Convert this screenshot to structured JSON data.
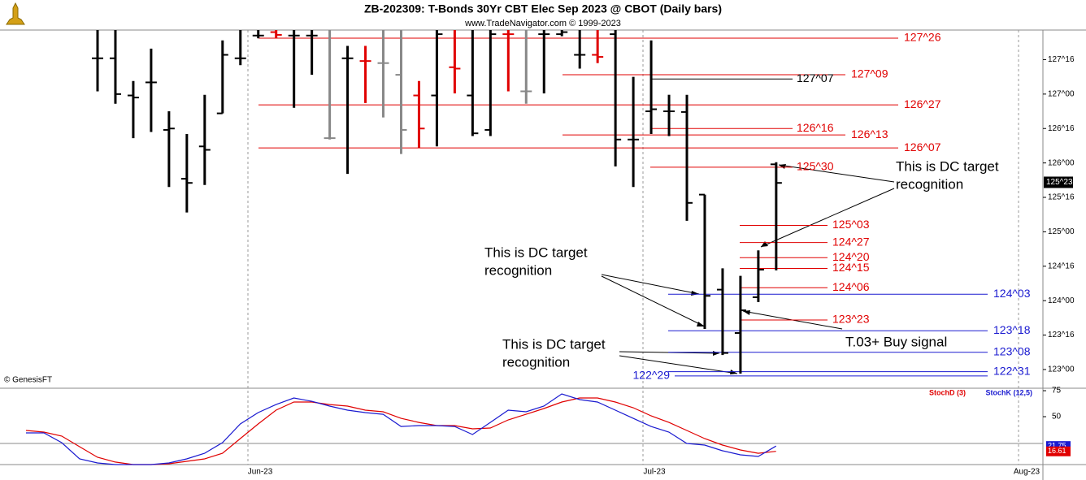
{
  "chart_data": [
    {
      "type": "ohlc",
      "title": "ZB-202309:  T-Bonds 30Yr CBT Elec Sep 2023 @ CBOT  (Daily bars)",
      "subtitle": "www.TradeNavigator.com © 1999-2023",
      "credit": "© GenesisFT",
      "x_axis_labels": [
        "Jun-23",
        "Jul-23",
        "Aug-23"
      ],
      "ylim": [
        122.74,
        127.93
      ],
      "yticks": [
        {
          "value": 123,
          "label": "123^00"
        },
        {
          "value": 123.5,
          "label": "123^16"
        },
        {
          "value": 124,
          "label": "124^00"
        },
        {
          "value": 124.5,
          "label": "124^16"
        },
        {
          "value": 125,
          "label": "125^00"
        },
        {
          "value": 125.5,
          "label": "125^16"
        },
        {
          "value": 126,
          "label": "126^00"
        },
        {
          "value": 126.5,
          "label": "126^16"
        },
        {
          "value": 127,
          "label": "127^00"
        },
        {
          "value": 127.5,
          "label": "127^16"
        }
      ],
      "open": [
        127.52,
        127.52,
        126.98,
        127.17,
        126.48,
        125.77,
        126.24,
        126.72,
        127.52,
        127.85,
        127.9,
        127.85,
        127.85,
        126.36,
        127.52,
        127.48,
        127.45,
        127.28,
        126.98,
        126.98,
        127.39,
        126.98,
        126.48,
        127.87,
        127.04,
        127.87,
        127.87,
        127.57,
        127.57,
        127.87,
        126.34,
        126.75,
        126.75,
        126.74,
        125.54,
        124.16,
        123.53,
        124.05,
        125.98
      ],
      "high": [
        127.93,
        127.93,
        127.19,
        127.66,
        126.75,
        126.42,
        126.99,
        127.78,
        127.93,
        127.93,
        127.93,
        127.93,
        127.93,
        127.93,
        127.7,
        127.7,
        127.93,
        127.93,
        127.19,
        127.93,
        127.93,
        127.93,
        127.93,
        127.93,
        127.93,
        127.93,
        127.93,
        127.93,
        127.93,
        127.93,
        127.25,
        127.78,
        126.99,
        126.99,
        125.54,
        124.47,
        124.36,
        124.73,
        126.01
      ],
      "low": [
        127.04,
        126.86,
        126.36,
        126.45,
        125.65,
        125.28,
        125.68,
        126.72,
        127.42,
        127.81,
        127.81,
        126.8,
        127.28,
        126.34,
        125.84,
        126.87,
        126.66,
        126.13,
        126.22,
        126.24,
        127.01,
        126.39,
        126.39,
        127.04,
        126.86,
        127.01,
        127.84,
        127.37,
        127.45,
        125.95,
        125.65,
        126.42,
        126.39,
        125.16,
        123.59,
        123.21,
        122.94,
        123.98,
        124.44
      ],
      "close": [
        127.52,
        127.0,
        126.95,
        127.17,
        126.5,
        125.71,
        126.19,
        127.57,
        127.52,
        127.85,
        127.86,
        127.85,
        127.85,
        126.36,
        127.52,
        127.48,
        127.45,
        126.48,
        126.5,
        127.87,
        127.37,
        126.43,
        127.87,
        127.87,
        127.04,
        127.87,
        127.9,
        127.57,
        127.54,
        126.34,
        126.34,
        126.78,
        126.75,
        125.42,
        124.07,
        123.24,
        123.86,
        124.45,
        125.71
      ],
      "colors": [
        "#000000",
        "#000000",
        "#000000",
        "#000000",
        "#000000",
        "#000000",
        "#000000",
        "#000000",
        "#000000",
        "#000000",
        "#e00000",
        "#000000",
        "#000000",
        "#888888",
        "#000000",
        "#e00000",
        "#888888",
        "#888888",
        "#e00000",
        "#000000",
        "#e00000",
        "#000000",
        "#000000",
        "#e00000",
        "#888888",
        "#000000",
        "#000000",
        "#000000",
        "#e00000",
        "#000000",
        "#000000",
        "#000000",
        "#000000",
        "#000000",
        "#000000",
        "#000000",
        "#000000",
        "#000000",
        "#000000"
      ],
      "levels": [
        {
          "value": 127.8125,
          "label": "127^26",
          "color": "#e00000"
        },
        {
          "value": 127.28125,
          "label": "127^09",
          "color": "#e00000"
        },
        {
          "value": 127.21875,
          "label": "127^07",
          "color": "#000000"
        },
        {
          "value": 126.84375,
          "label": "126^27",
          "color": "#e00000"
        },
        {
          "value": 126.5,
          "label": "126^16",
          "color": "#e00000"
        },
        {
          "value": 126.40625,
          "label": "126^13",
          "color": "#e00000"
        },
        {
          "value": 126.21875,
          "label": "126^07",
          "color": "#e00000"
        },
        {
          "value": 125.9375,
          "label": "125^30",
          "color": "#e00000"
        },
        {
          "value": 125.09375,
          "label": "125^03",
          "color": "#e00000"
        },
        {
          "value": 124.84375,
          "label": "124^27",
          "color": "#e00000"
        },
        {
          "value": 124.625,
          "label": "124^20",
          "color": "#e00000"
        },
        {
          "value": 124.46875,
          "label": "124^15",
          "color": "#e00000"
        },
        {
          "value": 124.1875,
          "label": "124^06",
          "color": "#e00000"
        },
        {
          "value": 124.09375,
          "label": "124^03",
          "color": "#1a1ad0"
        },
        {
          "value": 123.71875,
          "label": "123^23",
          "color": "#e00000"
        },
        {
          "value": 123.5625,
          "label": "123^18",
          "color": "#1a1ad0"
        },
        {
          "value": 123.25,
          "label": "123^08",
          "color": "#1a1ad0"
        },
        {
          "value": 122.96875,
          "label": "122^31",
          "color": "#1a1ad0"
        },
        {
          "value": 122.90625,
          "label": "122^29",
          "color": "#1a1ad0"
        }
      ],
      "last_price": {
        "value": 125.71875,
        "label": "125^23"
      },
      "annotations": [
        {
          "lines": [
            "This is DC target",
            "recognition"
          ]
        },
        {
          "lines": [
            "This is DC target",
            "recognition"
          ]
        },
        {
          "lines": [
            "This is DC target",
            "recognition"
          ]
        },
        {
          "lines": [
            "T.03+ Buy signal"
          ]
        }
      ]
    },
    {
      "type": "line",
      "ylim": [
        3.9,
        76.6
      ],
      "yticks": [
        50,
        75
      ],
      "series": [
        {
          "name": "StochD (3)",
          "color": "#e00000",
          "values": [
            36.7,
            35.2,
            31.3,
            21.1,
            10.9,
            6.3,
            3.9,
            3.9,
            4.7,
            7.0,
            9.4,
            14.8,
            28.9,
            43.0,
            56.3,
            64.1,
            64.1,
            61.7,
            60.2,
            56.3,
            54.7,
            48.4,
            44.5,
            41.4,
            41.4,
            38.3,
            39.1,
            46.9,
            52.3,
            57.8,
            64.1,
            68.0,
            68.0,
            64.1,
            58.6,
            50.8,
            44.5,
            36.7,
            28.9,
            22.7,
            18.0,
            14.8,
            16.61
          ]
        },
        {
          "name": "StochK (12,5)",
          "color": "#1a1ad0",
          "values": [
            34.4,
            34.4,
            25.0,
            9.4,
            5.5,
            3.9,
            3.9,
            3.9,
            5.5,
            9.4,
            14.8,
            25.0,
            43.0,
            53.9,
            61.7,
            68.0,
            64.8,
            60.2,
            56.3,
            53.9,
            52.3,
            40.6,
            41.4,
            41.4,
            40.6,
            32.8,
            44.5,
            56.3,
            54.7,
            60.2,
            71.9,
            66.4,
            64.1,
            56.3,
            48.4,
            40.6,
            35.2,
            24.2,
            22.7,
            17.2,
            13.3,
            11.7,
            21.75
          ]
        }
      ]
    }
  ]
}
